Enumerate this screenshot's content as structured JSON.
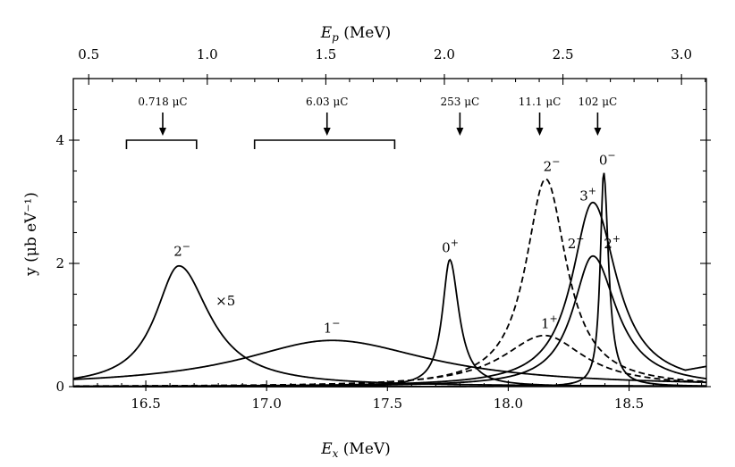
{
  "chart_data": {
    "type": "line",
    "xlabel": "E_x (MeV)",
    "xlabel_main": "E",
    "xlabel_sub": "x",
    "xlabel_unit": " (MeV)",
    "x2label": "E_p (MeV)",
    "x2label_main": "E",
    "x2label_sub": "p",
    "x2label_unit": " (MeV)",
    "ylabel": "y (μb eV⁻¹)",
    "xlim": [
      16.2,
      18.82
    ],
    "ylim": [
      0,
      5.0
    ],
    "x2lim": [
      0.435,
      3.105
    ],
    "x_ticks": [
      16.5,
      17.0,
      17.5,
      18.0,
      18.5
    ],
    "x_tick_labels": [
      "16.5",
      "17.0",
      "17.5",
      "18.0",
      "18.5"
    ],
    "x2_ticks": [
      0.5,
      1.0,
      1.5,
      2.0,
      2.5,
      3.0
    ],
    "x2_tick_labels": [
      "0.5",
      "1.0",
      "1.5",
      "2.0",
      "2.5",
      "3.0"
    ],
    "y_ticks": [
      0,
      2,
      4
    ],
    "y_tick_labels": [
      "0",
      "2",
      "4"
    ],
    "series": [
      {
        "name": "2⁻ (16.63 MeV) ×5",
        "style": "solid",
        "center": 16.637,
        "gamma_left": 0.118,
        "gamma_right": 0.155,
        "peak": 1.96,
        "floor_left": 0.0,
        "floor_right": 0.0
      },
      {
        "name": "1⁻",
        "style": "solid",
        "center": 17.27,
        "gamma_left": 0.46,
        "gamma_right": 0.5,
        "peak": 0.75,
        "floor_left": 0.0,
        "floor_right": 0.0
      },
      {
        "name": "0⁺",
        "style": "solid",
        "center": 17.758,
        "gamma_left": 0.037,
        "gamma_right": 0.046,
        "peak": 2.06,
        "floor_left": 0.0,
        "floor_right": 0.0
      },
      {
        "name": "2⁻ (18.15 MeV)",
        "style": "dashed",
        "center": 18.155,
        "gamma_left": 0.1,
        "gamma_right": 0.105,
        "peak": 3.37,
        "floor_left": 0.0,
        "floor_right": 0.07
      },
      {
        "name": "1⁺",
        "style": "dashed",
        "center": 18.15,
        "gamma_left": 0.21,
        "gamma_right": 0.2,
        "peak": 0.83,
        "floor_left": 0.0,
        "floor_right": 0.06
      },
      {
        "name": "3⁺",
        "style": "solid",
        "center": 18.35,
        "gamma_left": 0.105,
        "gamma_right": 0.12,
        "peak": 2.99,
        "floor_left": 0.0,
        "floor_right": 0.35
      },
      {
        "name": "2⁺",
        "style": "solid",
        "center": 18.35,
        "gamma_left": 0.1,
        "gamma_right": 0.12,
        "peak": 2.12,
        "floor_left": 0.0,
        "floor_right": 0.12
      },
      {
        "name": "0⁻",
        "style": "solid",
        "center": 18.395,
        "gamma_left": 0.017,
        "gamma_right": 0.024,
        "peak": 3.48,
        "floor_left": 0.0,
        "floor_right": 0.0
      }
    ],
    "peak_labels": [
      {
        "base": "2",
        "sup": "−",
        "x": 16.65,
        "y": 2.12
      },
      {
        "base": "×5",
        "sup": "",
        "x": 16.83,
        "y": 1.32
      },
      {
        "base": "1",
        "sup": "−",
        "x": 17.27,
        "y": 0.88
      },
      {
        "base": "0",
        "sup": "+",
        "x": 17.76,
        "y": 2.18
      },
      {
        "base": "2",
        "sup": "−",
        "x": 18.18,
        "y": 3.5
      },
      {
        "base": "1",
        "sup": "+",
        "x": 18.17,
        "y": 0.95
      },
      {
        "base": "0",
        "sup": "−",
        "x": 18.41,
        "y": 3.6
      },
      {
        "base": "3",
        "sup": "+",
        "x": 18.33,
        "y": 3.02
      },
      {
        "base": "2",
        "sup": "−",
        "x": 18.28,
        "y": 2.25
      },
      {
        "base": "2",
        "sup": "+",
        "x": 18.43,
        "y": 2.25
      }
    ],
    "annotations": [
      {
        "label": "0.718 μC",
        "charge": "0.718 μC",
        "arrow_x": 16.57,
        "bracket": [
          16.42,
          16.71
        ],
        "bracket_y": 4.0
      },
      {
        "label": "6.03 μC",
        "charge": "6.03 μC",
        "arrow_x": 17.25,
        "bracket": [
          16.95,
          17.53
        ],
        "bracket_y": 4.0
      },
      {
        "label": "253 μC",
        "charge": "253 μC",
        "arrow_x": 17.8,
        "bracket": null,
        "bracket_y": null
      },
      {
        "label": "11.1 μC",
        "charge": "11.1 μC",
        "arrow_x": 18.13,
        "bracket": null,
        "bracket_y": null
      },
      {
        "label": "102 μC",
        "charge": "102 μC",
        "arrow_x": 18.37,
        "bracket": null,
        "bracket_y": null
      }
    ]
  }
}
